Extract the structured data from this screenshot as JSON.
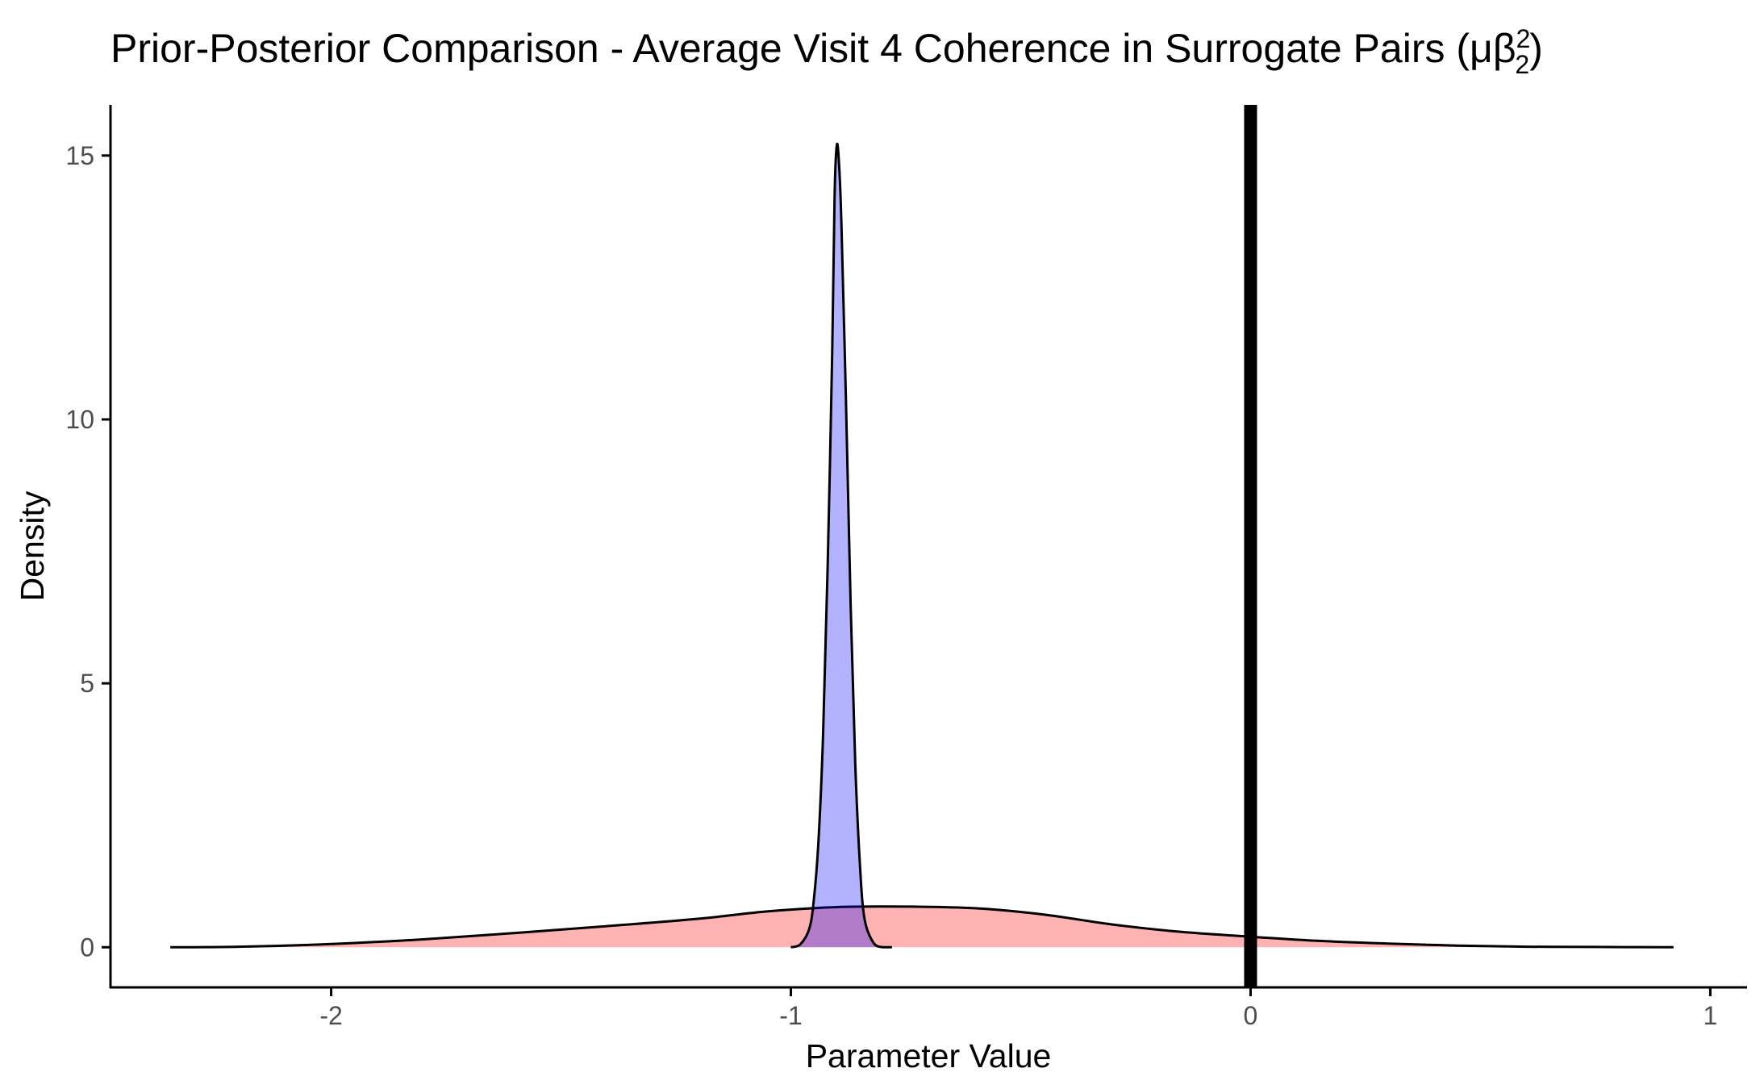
{
  "chart_data": {
    "type": "area",
    "title": {
      "prefix": "Prior-Posterior Comparison - Average Visit 4 Coherence in Surrogate Pairs (",
      "symbol": "μβ",
      "superscript": "2",
      "subscript": "2",
      "suffix": ")"
    },
    "xlabel": "Parameter Value",
    "ylabel": "Density",
    "xlim": [
      -2.48,
      1.08
    ],
    "ylim": [
      -0.76,
      15.96
    ],
    "x_ticks": [
      -2,
      -1,
      0,
      1
    ],
    "x_tick_labels": [
      "-2",
      "-1",
      "0",
      "1"
    ],
    "y_ticks": [
      0,
      5,
      10,
      15
    ],
    "y_tick_labels": [
      "0",
      "5",
      "10",
      "15"
    ],
    "grid": false,
    "legend": "none",
    "reference_line": {
      "x": 0,
      "color": "#000000"
    },
    "series": [
      {
        "fill": "#FF0000",
        "fill_opacity": 0.3,
        "x": [
          -2.35,
          -2.2,
          -2.0,
          -1.8,
          -1.6,
          -1.4,
          -1.2,
          -1.05,
          -0.9,
          -0.75,
          -0.6,
          -0.45,
          -0.3,
          -0.15,
          0.0,
          0.15,
          0.3,
          0.45,
          0.6,
          0.75,
          0.92
        ],
        "y": [
          0.0,
          0.01,
          0.06,
          0.15,
          0.27,
          0.4,
          0.54,
          0.68,
          0.76,
          0.77,
          0.74,
          0.62,
          0.43,
          0.29,
          0.2,
          0.12,
          0.07,
          0.03,
          0.01,
          0.005,
          0.0
        ]
      },
      {
        "fill": "#0000FF",
        "fill_opacity": 0.3,
        "x": [
          -1.0,
          -0.98,
          -0.96,
          -0.95,
          -0.94,
          -0.93,
          -0.92,
          -0.91,
          -0.905,
          -0.9,
          -0.895,
          -0.89,
          -0.88,
          -0.87,
          -0.86,
          -0.85,
          -0.84,
          -0.82,
          -0.8,
          -0.78
        ],
        "y": [
          0.0,
          0.05,
          0.35,
          0.9,
          2.0,
          4.0,
          7.2,
          11.3,
          14.2,
          15.2,
          14.8,
          13.7,
          10.3,
          6.5,
          3.5,
          1.6,
          0.55,
          0.08,
          0.0,
          0.0
        ]
      }
    ]
  }
}
